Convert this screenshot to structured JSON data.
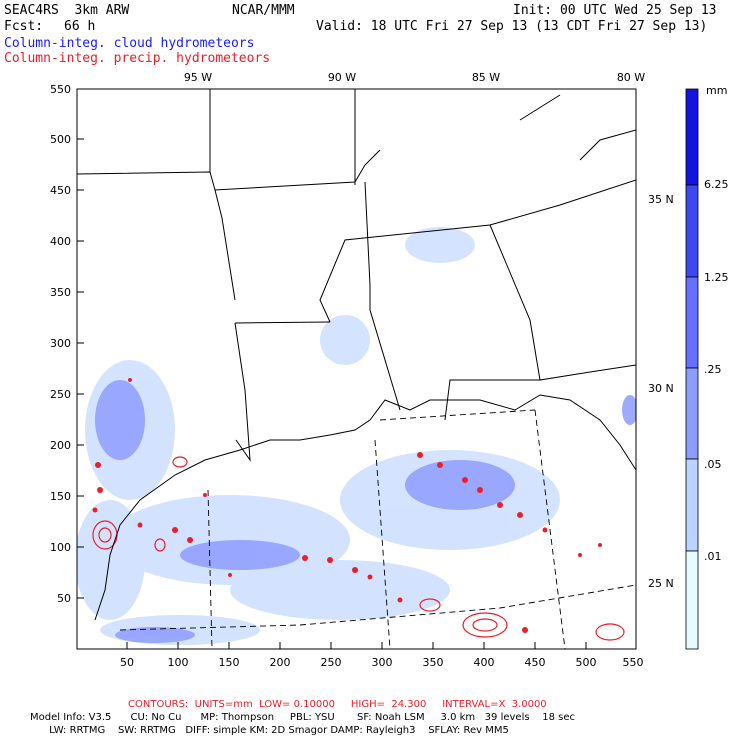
{
  "header": {
    "model": "SEAC4RS  3km ARW",
    "org": "NCAR/MMM",
    "fcst_label": "Fcst:",
    "fcst_value": "66 h",
    "init": "Init: 00 UTC Wed 25 Sep 13",
    "valid": "Valid: 18 UTC Fri 27 Sep 13 (13 CDT Fri 27 Sep 13)",
    "field1": "Column-integ. cloud hydrometeors",
    "field2": "Column-integ. precip. hydrometeors",
    "field1_color": "#1a1aff",
    "field2_color": "#e8202a"
  },
  "map": {
    "x_ticks": [
      "50",
      "100",
      "150",
      "200",
      "250",
      "300",
      "350",
      "400",
      "450",
      "500",
      "550"
    ],
    "y_ticks": [
      "50",
      "100",
      "150",
      "200",
      "250",
      "300",
      "350",
      "400",
      "450",
      "500",
      "550"
    ],
    "lon_labels": [
      "95 W",
      "90 W",
      "85 W",
      "80 W"
    ],
    "lat_labels": [
      "35 N",
      "30 N",
      "25 N"
    ]
  },
  "colorbar": {
    "unit": "mm",
    "labels": [
      "6.25",
      "1.25",
      ".25",
      ".05",
      ".01"
    ],
    "colors": [
      "#ffffff",
      "#e6fbff",
      "#bcd2ff",
      "#8c9cff",
      "#6470ff",
      "#3c48f0",
      "#1414e0"
    ]
  },
  "footer": {
    "contours": "CONTOURS:  UNITS=mm  LOW= 0.10000     HIGH=  24.300     INTERVAL=X  3.0000",
    "info1": "Model Info: V3.5      CU: No Cu      MP: Thompson     PBL: YSU       SF: Noah LSM     3.0 km   39 levels    18 sec",
    "info2": "      LW: RRTMG    SW: RRTMG   DIFF: simple KM: 2D Smagor DAMP: Rayleigh3    SFLAY: Rev MM5"
  }
}
